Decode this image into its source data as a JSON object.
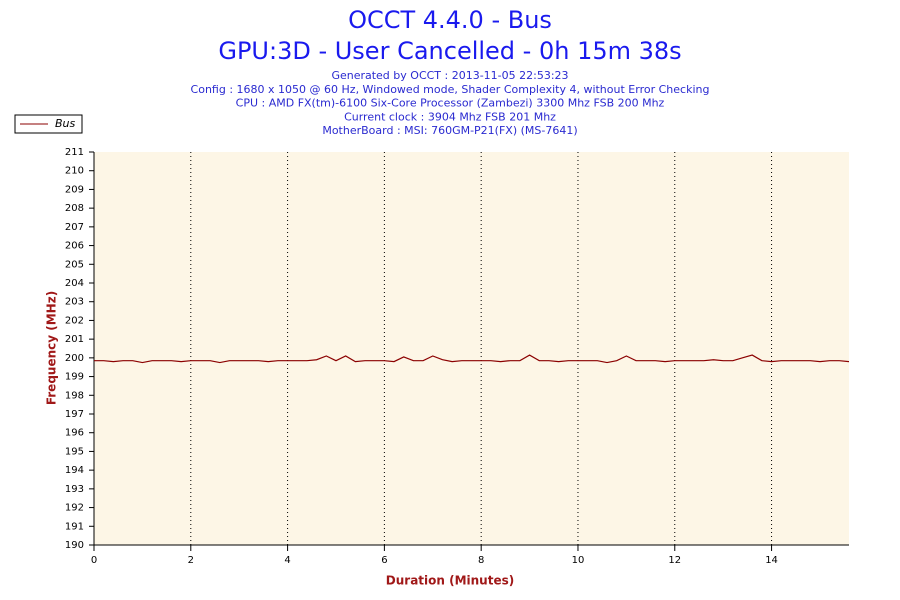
{
  "chart_data": {
    "type": "line",
    "title": "OCCT 4.4.0 - Bus",
    "subtitle": "GPU:3D - User Cancelled - 0h 15m 38s",
    "info": [
      "Generated by OCCT : 2013-11-05 22:53:23",
      "Config : 1680 x 1050 @ 60 Hz, Windowed mode, Shader Complexity 4, without Error Checking",
      "CPU : AMD FX(tm)-6100 Six-Core Processor (Zambezi) 3300 Mhz FSB 200 Mhz",
      "Current clock : 3904 Mhz FSB 201 Mhz",
      "MotherBoard : MSI: 760GM-P21(FX) (MS-7641)"
    ],
    "x_label": "Duration (Minutes)",
    "y_label": "Frequency (MHz)",
    "xlim": [
      0,
      15.6
    ],
    "ylim": [
      190,
      211
    ],
    "xticks": [
      0,
      2,
      4,
      6,
      8,
      10,
      12,
      14
    ],
    "yticks": [
      190,
      191,
      192,
      193,
      194,
      195,
      196,
      197,
      198,
      199,
      200,
      201,
      202,
      203,
      204,
      205,
      206,
      207,
      208,
      209,
      210,
      211
    ],
    "grid": true,
    "legend": "top-left",
    "x": [
      0,
      0.2,
      0.4,
      0.6,
      0.8,
      1,
      1.2,
      1.4,
      1.6,
      1.8,
      2,
      2.2,
      2.4,
      2.6,
      2.8,
      3,
      3.2,
      3.4,
      3.6,
      3.8,
      4,
      4.2,
      4.4,
      4.6,
      4.8,
      5,
      5.2,
      5.4,
      5.6,
      5.8,
      6,
      6.2,
      6.4,
      6.6,
      6.8,
      7,
      7.2,
      7.4,
      7.6,
      7.8,
      8,
      8.2,
      8.4,
      8.6,
      8.8,
      9,
      9.2,
      9.4,
      9.6,
      9.8,
      10,
      10.2,
      10.4,
      10.6,
      10.8,
      11,
      11.2,
      11.4,
      11.6,
      11.8,
      12,
      12.2,
      12.4,
      12.6,
      12.8,
      13,
      13.2,
      13.4,
      13.6,
      13.8,
      14,
      14.2,
      14.4,
      14.6,
      14.8,
      15,
      15.2,
      15.4,
      15.6
    ],
    "series": [
      {
        "name": "Bus",
        "color": "#8b0000",
        "values": [
          199.85,
          199.85,
          199.8,
          199.85,
          199.85,
          199.75,
          199.85,
          199.85,
          199.85,
          199.8,
          199.85,
          199.85,
          199.85,
          199.75,
          199.85,
          199.85,
          199.85,
          199.85,
          199.8,
          199.85,
          199.85,
          199.85,
          199.85,
          199.9,
          200.1,
          199.85,
          200.1,
          199.8,
          199.85,
          199.85,
          199.85,
          199.8,
          200.05,
          199.85,
          199.85,
          200.1,
          199.9,
          199.8,
          199.85,
          199.85,
          199.85,
          199.85,
          199.8,
          199.85,
          199.85,
          200.15,
          199.85,
          199.85,
          199.8,
          199.85,
          199.85,
          199.85,
          199.85,
          199.75,
          199.85,
          200.1,
          199.85,
          199.85,
          199.85,
          199.8,
          199.85,
          199.85,
          199.85,
          199.85,
          199.9,
          199.85,
          199.85,
          200.0,
          200.15,
          199.85,
          199.8,
          199.85,
          199.85,
          199.85,
          199.85,
          199.8,
          199.85,
          199.85,
          199.8
        ]
      }
    ]
  }
}
